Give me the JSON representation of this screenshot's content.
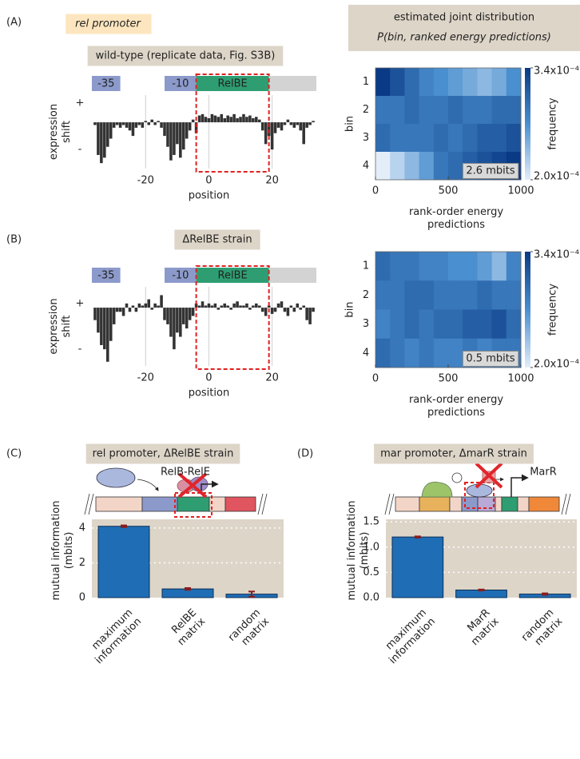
{
  "chart_data": [
    {
      "type": "bar",
      "panel": "(A)",
      "tag": "rel promoter",
      "title": "wild-type (replicate data, Fig. S3B)",
      "regions": [
        {
          "label": "-35",
          "start": -37,
          "end": -28,
          "color": "#8c9acb"
        },
        {
          "label": "-10",
          "start": -14,
          "end": -4,
          "color": "#8c9acb"
        },
        {
          "label": "RelBE",
          "start": -4,
          "end": 19,
          "color": "#2e9e72"
        },
        {
          "start": 19,
          "end": 34,
          "color": "#d3d3d3"
        }
      ],
      "highlight": [
        -4,
        19
      ],
      "xlabel": "position",
      "ylabel": "expression\nshift",
      "x": [
        -36,
        -35,
        -34,
        -33,
        -32,
        -31,
        -30,
        -29,
        -28,
        -27,
        -26,
        -25,
        -24,
        -23,
        -22,
        -21,
        -20,
        -19,
        -18,
        -17,
        -16,
        -15,
        -14,
        -13,
        -12,
        -11,
        -10,
        -9,
        -8,
        -7,
        -6,
        -5,
        -4,
        -3,
        -2,
        -1,
        0,
        1,
        2,
        3,
        4,
        5,
        6,
        7,
        8,
        9,
        10,
        11,
        12,
        13,
        14,
        15,
        16,
        17,
        18,
        19,
        20,
        21,
        22,
        23,
        24,
        25,
        26,
        27,
        28,
        29,
        30,
        31,
        32,
        33
      ],
      "values": [
        -0.1,
        -1.2,
        -1.5,
        -1.3,
        -0.9,
        -0.6,
        -0.2,
        -0.1,
        -0.2,
        -0.1,
        -0.2,
        -0.3,
        -0.5,
        -0.2,
        -0.1,
        -0.2,
        0.05,
        -0.1,
        0.1,
        -0.1,
        0.05,
        -0.2,
        -0.5,
        -0.9,
        -1.4,
        -1.2,
        -0.8,
        -1.3,
        -1.0,
        -0.6,
        -0.3,
        0.1,
        -0.4,
        0.25,
        0.3,
        0.2,
        0.15,
        0.3,
        0.25,
        0.2,
        0.3,
        0.15,
        0.25,
        0.2,
        0.3,
        0.15,
        0.2,
        0.3,
        0.2,
        0.25,
        0.15,
        0.2,
        0.1,
        -0.3,
        -0.8,
        -0.5,
        -1.0,
        -0.4,
        -0.2,
        -0.3,
        -0.1,
        0.1,
        -0.1,
        -0.2,
        -0.1,
        -0.3,
        -0.8,
        -0.2,
        -0.1,
        0.05
      ],
      "color": "#333333",
      "xlim": [
        -37.5,
        34.5
      ],
      "xticks": [
        -20,
        0,
        20
      ],
      "ylim": [
        -1.7,
        1.0
      ],
      "yticks": [
        {
          "value": 0.7,
          "label": "+"
        },
        {
          "value": -1,
          "label": "-"
        }
      ],
      "xgrid": true
    },
    {
      "type": "heatmap",
      "title": "estimated joint distribution",
      "subtitle": "P(bin, ranked energy predictions)",
      "xlabel": "rank-order energy\npredictions",
      "ylabel": "bin",
      "xbins": [
        0,
        100,
        200,
        300,
        400,
        500,
        600,
        700,
        800,
        900,
        1000
      ],
      "values": [
        [
          0.00034,
          0.00032,
          0.0003,
          0.00028,
          0.00027,
          0.00026,
          0.00025,
          0.00024,
          0.00025,
          0.00027
        ],
        [
          0.00029,
          0.00029,
          0.0003,
          0.00029,
          0.00029,
          0.0003,
          0.00029,
          0.00029,
          0.0003,
          0.0003
        ],
        [
          0.0003,
          0.00029,
          0.00029,
          0.00029,
          0.0003,
          0.00029,
          0.0003,
          0.00031,
          0.00031,
          0.00032
        ],
        [
          0.0002,
          0.00022,
          0.00024,
          0.00026,
          0.00029,
          0.0003,
          0.00031,
          0.00032,
          0.00033,
          0.00034
        ]
      ],
      "xlim": [
        0,
        1000
      ],
      "xticks": [
        0,
        500,
        1000
      ],
      "ylim": [
        4.5,
        0.5
      ],
      "yticks": [
        1,
        2,
        3,
        4
      ],
      "clim": [
        0.0002,
        0.00034
      ],
      "cticks": [
        {
          "value": 0.00034,
          "label": "3.4x10⁻⁴"
        },
        {
          "value": 0.0002,
          "label": "2.0x10⁻⁴"
        }
      ],
      "clabel": "frequency",
      "colormap": [
        "#e4eef9",
        "#4a8fcf",
        "#0a3a85"
      ],
      "annotation": "2.6 mbits"
    },
    {
      "type": "bar",
      "panel": "(B)",
      "title": "ΔRelBE strain",
      "regions": [
        {
          "label": "-35",
          "start": -37,
          "end": -28,
          "color": "#8c9acb"
        },
        {
          "label": "-10",
          "start": -14,
          "end": -4,
          "color": "#8c9acb"
        },
        {
          "label": "RelBE",
          "start": -4,
          "end": 19,
          "color": "#2e9e72"
        },
        {
          "start": 19,
          "end": 34,
          "color": "#d3d3d3"
        }
      ],
      "highlight": [
        -4,
        19
      ],
      "xlabel": "position",
      "ylabel": "expression\nshift",
      "x": [
        -36,
        -35,
        -34,
        -33,
        -32,
        -31,
        -30,
        -29,
        -28,
        -27,
        -26,
        -25,
        -24,
        -23,
        -22,
        -21,
        -20,
        -19,
        -18,
        -17,
        -16,
        -15,
        -14,
        -13,
        -12,
        -11,
        -10,
        -9,
        -8,
        -7,
        -6,
        -5,
        -4,
        -3,
        -2,
        -1,
        0,
        1,
        2,
        3,
        4,
        5,
        6,
        7,
        8,
        9,
        10,
        11,
        12,
        13,
        14,
        15,
        16,
        17,
        18,
        19,
        20,
        21,
        22,
        23,
        24,
        25,
        26,
        27,
        28,
        29,
        30,
        31,
        32,
        33
      ],
      "values": [
        -0.3,
        -0.6,
        -0.9,
        -1.0,
        -1.3,
        -0.8,
        -0.4,
        -0.1,
        -0.1,
        -0.2,
        0.1,
        -0.1,
        0.05,
        -0.1,
        0.1,
        0.05,
        0.1,
        0.2,
        -0.05,
        0.1,
        0.05,
        0.3,
        -0.3,
        -0.4,
        -0.7,
        -1.0,
        -0.6,
        -0.7,
        -0.4,
        -0.5,
        -0.3,
        -0.2,
        0.1,
        0.05,
        0.15,
        0.05,
        0.1,
        0.05,
        0.1,
        -0.05,
        0.05,
        0.1,
        0.05,
        -0.05,
        0.1,
        0.15,
        0.05,
        0.05,
        0.1,
        -0.05,
        0.05,
        0.1,
        0.05,
        -0.1,
        -0.2,
        0.05,
        -0.15,
        -0.1,
        0.1,
        0.15,
        -0.1,
        -0.2,
        0.05,
        -0.1,
        0.1,
        -0.05,
        0.05,
        -0.3,
        -0.4,
        -0.1
      ],
      "color": "#333333",
      "xlim": [
        -37.5,
        34.5
      ],
      "xticks": [
        -20,
        0,
        20
      ],
      "ylim": [
        -1.4,
        0.5
      ],
      "yticks": [
        {
          "value": 0.1,
          "label": "+"
        },
        {
          "value": -1,
          "label": "-"
        }
      ],
      "xgrid": true
    },
    {
      "type": "heatmap",
      "xlabel": "rank-order energy\npredictions",
      "ylabel": "bin",
      "xbins": [
        0,
        100,
        200,
        300,
        400,
        500,
        600,
        700,
        800,
        900,
        1000
      ],
      "values": [
        [
          0.0003,
          0.00029,
          0.00029,
          0.00028,
          0.00028,
          0.00027,
          0.00027,
          0.00026,
          0.00024,
          0.00028
        ],
        [
          0.00029,
          0.00029,
          0.0003,
          0.0003,
          0.00029,
          0.00029,
          0.00029,
          0.0003,
          0.00029,
          0.00029
        ],
        [
          0.00028,
          0.00029,
          0.0003,
          0.00029,
          0.0003,
          0.0003,
          0.00031,
          0.00031,
          0.00032,
          0.0003
        ],
        [
          0.0003,
          0.00029,
          0.00028,
          0.00029,
          0.00028,
          0.00028,
          0.00029,
          0.00028,
          0.00029,
          0.00029
        ]
      ],
      "xlim": [
        0,
        1000
      ],
      "xticks": [
        0,
        500,
        1000
      ],
      "ylim": [
        4.5,
        0.5
      ],
      "yticks": [
        1,
        2,
        3,
        4
      ],
      "clim": [
        0.0002,
        0.00034
      ],
      "cticks": [
        {
          "value": 0.00034,
          "label": "3.4x10⁻⁴"
        },
        {
          "value": 0.0002,
          "label": "2.0x10⁻⁴"
        }
      ],
      "clabel": "frequency",
      "colormap": [
        "#e4eef9",
        "#4a8fcf",
        "#0a3a85"
      ],
      "annotation": "0.5 mbits"
    },
    {
      "type": "bar",
      "panel": "(C)",
      "title": "rel promoter, ΔRelBE strain",
      "annotation": "RelB-RelE",
      "categories": [
        "maximum\ninformation",
        "RelBE\nmatrix",
        "random\nmatrix"
      ],
      "values": [
        4.1,
        0.5,
        0.2
      ],
      "errors": [
        0.05,
        0.05,
        0.15
      ],
      "color": "#1f6eb5",
      "error_color": "#8b1c1c",
      "ylabel": "mutual information\n(mbits)",
      "ylim": [
        0,
        4.5
      ],
      "yticks": [
        0,
        2,
        4
      ],
      "grid": true,
      "background": "#ddd5c8"
    },
    {
      "type": "bar",
      "panel": "(D)",
      "title": "mar promoter, ΔmarR strain",
      "annotation": "MarR",
      "categories": [
        "maximum\ninformation",
        "MarR\nmatrix",
        "random\nmatrix"
      ],
      "values": [
        1.2,
        0.15,
        0.07
      ],
      "errors": [
        0.012,
        0.01,
        0.015
      ],
      "color": "#1f6eb5",
      "error_color": "#8b1c1c",
      "ylabel": "mutual information\n(mbits)",
      "ylim": [
        0,
        1.55
      ],
      "yticks": [
        {
          "value": 0,
          "label": "0.0"
        },
        0.5,
        {
          "value": 1,
          "label": "1.0"
        },
        1.5
      ],
      "grid": true,
      "background": "#ddd5c8"
    }
  ]
}
